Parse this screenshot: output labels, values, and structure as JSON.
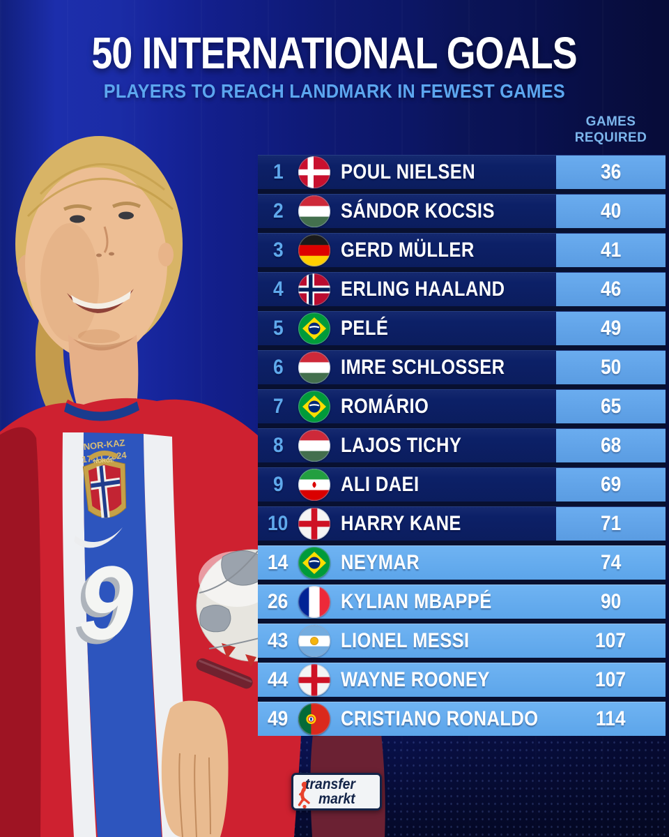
{
  "header": {
    "title": "50 INTERNATIONAL GOALS",
    "subtitle": "PLAYERS TO REACH LANDMARK IN FEWEST GAMES",
    "games_header_line1": "GAMES",
    "games_header_line2": "REQUIRED"
  },
  "colors": {
    "accent_light_blue": "#5FA9EC",
    "row_navy": "#0C2067",
    "games_cell_blue": "#5C9FE4",
    "light_row_blue": "#61AAEC",
    "background_navy": "#0D1870",
    "logo_navy": "#132448",
    "logo_red": "#E8432D"
  },
  "table": {
    "rows": [
      {
        "rank": "1",
        "country": "Denmark",
        "flag": "denmark",
        "player": "POUL NIELSEN",
        "games": "36",
        "tier": "top"
      },
      {
        "rank": "2",
        "country": "Hungary",
        "flag": "hungary",
        "player": "SÁNDOR KOCSIS",
        "games": "40",
        "tier": "top"
      },
      {
        "rank": "3",
        "country": "Germany",
        "flag": "germany",
        "player": "GERD MÜLLER",
        "games": "41",
        "tier": "top"
      },
      {
        "rank": "4",
        "country": "Norway",
        "flag": "norway",
        "player": "ERLING HAALAND",
        "games": "46",
        "tier": "top"
      },
      {
        "rank": "5",
        "country": "Brazil",
        "flag": "brazil",
        "player": "PELÉ",
        "games": "49",
        "tier": "top"
      },
      {
        "rank": "6",
        "country": "Hungary",
        "flag": "hungary",
        "player": "IMRE SCHLOSSER",
        "games": "50",
        "tier": "top"
      },
      {
        "rank": "7",
        "country": "Brazil",
        "flag": "brazil",
        "player": "ROMÁRIO",
        "games": "65",
        "tier": "top"
      },
      {
        "rank": "8",
        "country": "Hungary",
        "flag": "hungary",
        "player": "LAJOS TICHY",
        "games": "68",
        "tier": "top"
      },
      {
        "rank": "9",
        "country": "Iran",
        "flag": "iran",
        "player": "ALI DAEI",
        "games": "69",
        "tier": "top"
      },
      {
        "rank": "10",
        "country": "England",
        "flag": "england",
        "player": "HARRY KANE",
        "games": "71",
        "tier": "top"
      },
      {
        "rank": "14",
        "country": "Brazil",
        "flag": "brazil",
        "player": "NEYMAR",
        "games": "74",
        "tier": "light"
      },
      {
        "rank": "26",
        "country": "France",
        "flag": "france",
        "player": "KYLIAN MBAPPÉ",
        "games": "90",
        "tier": "light"
      },
      {
        "rank": "43",
        "country": "Argentina",
        "flag": "argentina",
        "player": "LIONEL MESSI",
        "games": "107",
        "tier": "light"
      },
      {
        "rank": "44",
        "country": "England",
        "flag": "england",
        "player": "WAYNE ROONEY",
        "games": "107",
        "tier": "light"
      },
      {
        "rank": "49",
        "country": "Portugal",
        "flag": "portugal",
        "player": "CRISTIANO RONALDO",
        "games": "114",
        "tier": "light"
      }
    ]
  },
  "photo": {
    "jersey_match_line1": "NOR-KAZ",
    "jersey_match_line2": "17.11.2024",
    "crest_label": "NORGE",
    "jersey_number": "9"
  },
  "footer": {
    "logo_word_top": "transfer",
    "logo_word_bottom": "markt"
  },
  "chart_data": {
    "type": "table",
    "title": "50 INTERNATIONAL GOALS",
    "subtitle": "PLAYERS TO REACH LANDMARK IN FEWEST GAMES",
    "columns": [
      "Rank",
      "Country",
      "Player",
      "Games required"
    ],
    "rows": [
      [
        1,
        "Denmark",
        "Poul Nielsen",
        36
      ],
      [
        2,
        "Hungary",
        "Sándor Kocsis",
        40
      ],
      [
        3,
        "Germany",
        "Gerd Müller",
        41
      ],
      [
        4,
        "Norway",
        "Erling Haaland",
        46
      ],
      [
        5,
        "Brazil",
        "Pelé",
        49
      ],
      [
        6,
        "Hungary",
        "Imre Schlosser",
        50
      ],
      [
        7,
        "Brazil",
        "Romário",
        65
      ],
      [
        8,
        "Hungary",
        "Lajos Tichy",
        68
      ],
      [
        9,
        "Iran",
        "Ali Daei",
        69
      ],
      [
        10,
        "England",
        "Harry Kane",
        71
      ],
      [
        14,
        "Brazil",
        "Neymar",
        74
      ],
      [
        26,
        "France",
        "Kylian Mbappé",
        90
      ],
      [
        43,
        "Argentina",
        "Lionel Messi",
        107
      ],
      [
        44,
        "England",
        "Wayne Rooney",
        107
      ],
      [
        49,
        "Portugal",
        "Cristiano Ronaldo",
        114
      ]
    ]
  }
}
